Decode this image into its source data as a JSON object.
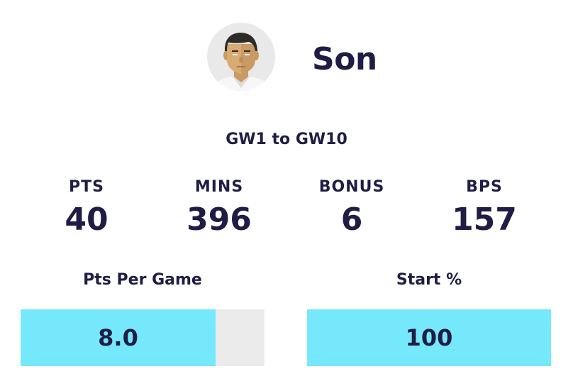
{
  "player": {
    "name": "Son",
    "avatar_icon": "player-avatar-icon"
  },
  "range": {
    "label": "GW1 to GW10"
  },
  "stats": [
    {
      "label": "PTS",
      "value": "40"
    },
    {
      "label": "MINS",
      "value": "396"
    },
    {
      "label": "BONUS",
      "value": "6"
    },
    {
      "label": "BPS",
      "value": "157"
    }
  ],
  "metrics": {
    "ppg": {
      "title": "Pts Per Game",
      "value": "8.0",
      "fill_fraction": 0.8
    },
    "start": {
      "title": "Start %",
      "value": "100",
      "fill_fraction": 1.0
    }
  },
  "colors": {
    "text": "#1f1d45",
    "bar_fill": "#75e9fb",
    "bar_track": "#ebebeb"
  }
}
